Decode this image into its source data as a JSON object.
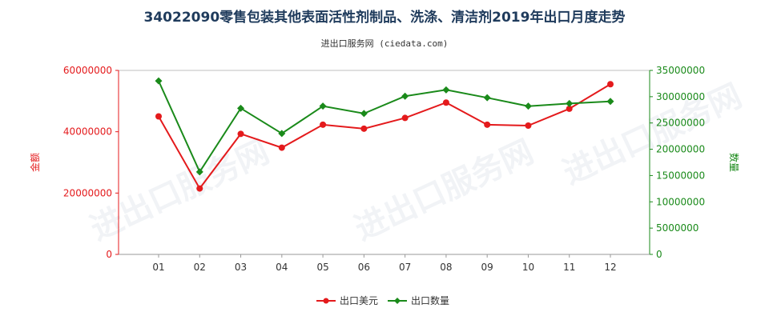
{
  "chart_data": {
    "type": "line",
    "title": "34022090零售包装其他表面活性剂制品、洗涤、清洁剂2019年出口月度走势",
    "subtitle": "进出口服务网 (ciedata.com)",
    "categories": [
      "01",
      "02",
      "03",
      "04",
      "05",
      "06",
      "07",
      "08",
      "09",
      "10",
      "11",
      "12"
    ],
    "series": [
      {
        "name": "出口美元",
        "axis": "left",
        "color": "#e41a1c",
        "values": [
          45000000,
          21500000,
          39300000,
          34800000,
          42300000,
          41000000,
          44500000,
          49500000,
          42300000,
          42000000,
          47500000,
          55500000
        ]
      },
      {
        "name": "出口数量",
        "axis": "right",
        "color": "#1a8a1a",
        "values": [
          33000000,
          15700000,
          27800000,
          23000000,
          28200000,
          26800000,
          30100000,
          31300000,
          29800000,
          28200000,
          28700000,
          29100000
        ]
      }
    ],
    "yleft": {
      "label": "金额",
      "color": "#e41a1c",
      "ylim": [
        0,
        60000000
      ],
      "ticks": [
        "0",
        "20000000",
        "40000000",
        "60000000"
      ]
    },
    "yright": {
      "label": "数量",
      "color": "#1a8a1a",
      "ylim": [
        0,
        35000000
      ],
      "ticks": [
        "0",
        "5000000",
        "10000000",
        "15000000",
        "20000000",
        "25000000",
        "30000000",
        "35000000"
      ]
    },
    "legend": {
      "position": "bottom-center"
    },
    "grid": false,
    "watermark": "进出口服务网"
  }
}
